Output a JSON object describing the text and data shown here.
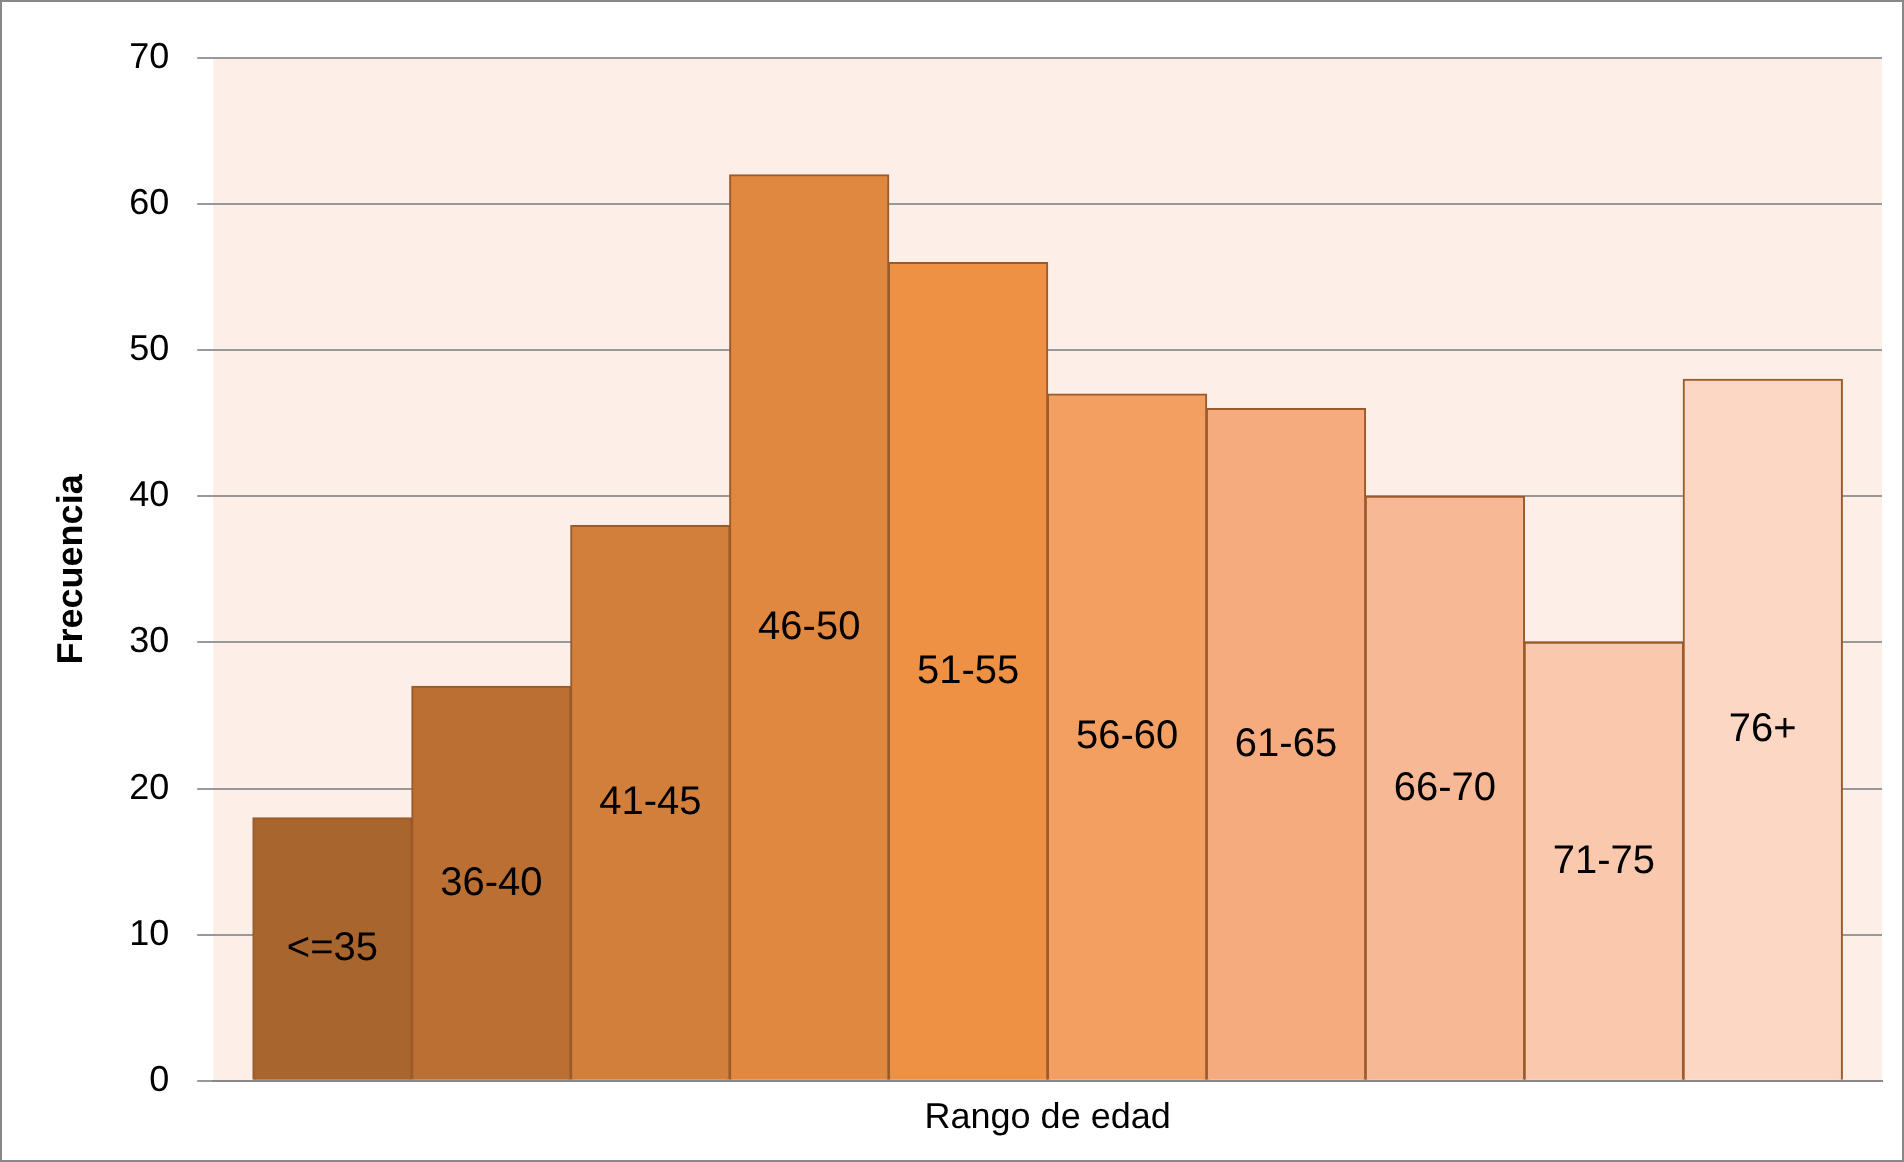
{
  "chart_data": {
    "type": "bar",
    "xlabel": "Rango de edad",
    "ylabel": "Frecuencia",
    "categories": [
      "<=35",
      "36-40",
      "41-45",
      "46-50",
      "51-55",
      "56-60",
      "61-65",
      "66-70",
      "71-75",
      "76+"
    ],
    "values": [
      18,
      27,
      38,
      62,
      56,
      47,
      46,
      40,
      30,
      48
    ],
    "colors": [
      "#a9652e",
      "#bb6f33",
      "#d17f3a",
      "#e0883f",
      "#ee9144",
      "#f39f62",
      "#f5ab7e",
      "#f7b995",
      "#f9c8ad",
      "#fbd7c4"
    ],
    "ylim": [
      0,
      70
    ],
    "yticks": [
      0,
      10,
      20,
      30,
      40,
      50,
      60,
      70
    ],
    "grid": "y",
    "tick_labels": "y",
    "legend": false
  }
}
